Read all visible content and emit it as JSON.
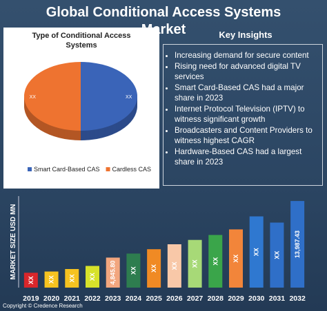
{
  "title": "Global Conditional Access Systems Market",
  "insights_title": "Key Insights",
  "insights": [
    "Increasing demand for secure content",
    "Rising need for advanced digital TV services",
    "Smart Card-Based CAS had a major share in 2023",
    "Internet Protocol Television (IPTV) to witness significant growth",
    "Broadcasters and Content Providers to witness highest CAGR",
    "Hardware-Based CAS had a largest share in 2023"
  ],
  "footer": "Copyright © Credence Research",
  "chart_data": [
    {
      "type": "pie",
      "title": "Type of Conditional Access Systems",
      "categories": [
        "Smart Card-Based CAS",
        "Cardless CAS"
      ],
      "values": [
        50,
        50
      ],
      "value_labels": [
        "XX",
        "XX"
      ],
      "colors": [
        "#3a64b8",
        "#ee7330"
      ]
    },
    {
      "type": "bar",
      "ylabel": "MARKET SIZE USD MN",
      "categories": [
        "2019",
        "2020",
        "2021",
        "2022",
        "2023",
        "2024",
        "2025",
        "2026",
        "2027",
        "2028",
        "2029",
        "2030",
        "2031",
        "2032"
      ],
      "values": [
        2400,
        2600,
        3000,
        3500,
        4845.8,
        5500,
        6200,
        7000,
        7700,
        8500,
        9400,
        11500,
        10500,
        13987.43
      ],
      "value_labels": [
        "XX",
        "XX",
        "XX",
        "XX",
        "4,845.80",
        "XX",
        "XX",
        "XX",
        "XX",
        "XX",
        "XX",
        "XX",
        "XX",
        "13,987.43"
      ],
      "colors": [
        "#d9262b",
        "#f6c320",
        "#f6c320",
        "#d7e22a",
        "#f2a67e",
        "#2e7d4f",
        "#f08a24",
        "#f8c8a8",
        "#a7d977",
        "#3aa54a",
        "#f2853a",
        "#2f78d0",
        "#2f6fc8",
        "#2f6fc8"
      ],
      "ylim": [
        0,
        15000
      ]
    }
  ]
}
